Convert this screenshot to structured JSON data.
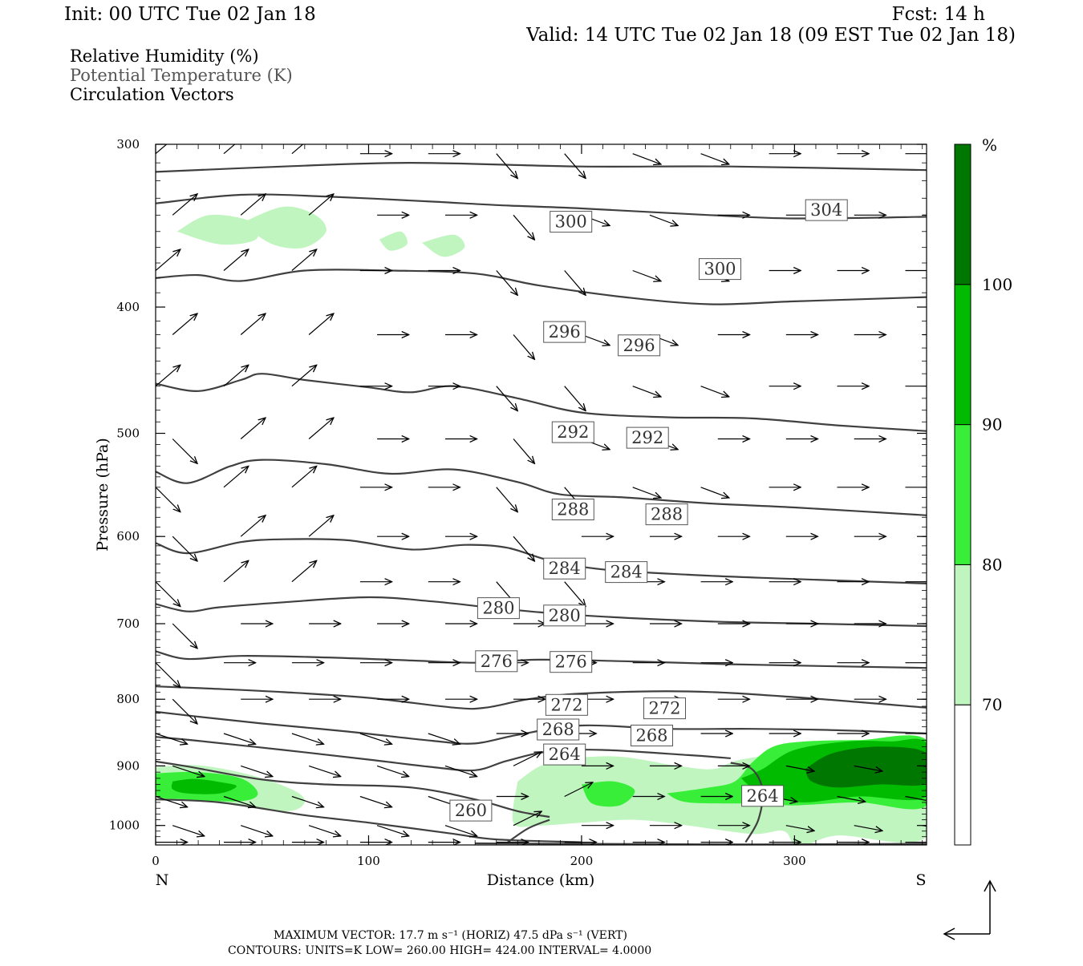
{
  "header": {
    "init": "Init: 00 UTC Tue 02 Jan 18",
    "fcst": "Fcst:   14 h",
    "valid": "Valid: 14 UTC Tue 02 Jan 18 (09 EST Tue 02 Jan 18)"
  },
  "legend": {
    "line1": "Relative Humidity (%)",
    "line2": "Potential Temperature (K)",
    "line3": "Circulation Vectors"
  },
  "footer": {
    "line1": "MAXIMUM VECTOR:  17.7 m s⁻¹ (HORIZ)        47.5 dPa s⁻¹ (VERT)",
    "line2": "CONTOURS:  UNITS=K  LOW=  260.00       HIGH=  424.00       INTERVAL=    4.0000"
  },
  "colors": {
    "rh70": "#c0f5c0",
    "rh80": "#38ee38",
    "rh90": "#00bb00",
    "rh100": "#007700",
    "contour": "#404040",
    "vector": "#000000"
  },
  "chart_data": {
    "type": "cross-section",
    "xlabel": "Distance (km)",
    "ylabel": "Pressure (hPa)",
    "xlim": [
      0,
      362
    ],
    "ylim": [
      1035,
      300
    ],
    "y_scale": "log",
    "x_ticks": [
      0,
      100,
      200,
      300
    ],
    "y_ticks": [
      300,
      400,
      500,
      600,
      700,
      800,
      900,
      1000
    ],
    "x_end_labels": {
      "left": "N",
      "right": "S"
    },
    "colorbar": {
      "unit": "%",
      "levels": [
        70,
        80,
        90,
        100
      ],
      "colors": [
        "#ffffff",
        "#c0f5c0",
        "#38ee38",
        "#00bb00",
        "#007700"
      ]
    },
    "theta_contours": [
      {
        "value": 304,
        "pts": [
          [
            0,
            315
          ],
          [
            60,
            312
          ],
          [
            120,
            310
          ],
          [
            200,
            312
          ],
          [
            270,
            312
          ],
          [
            362,
            314
          ]
        ]
      },
      {
        "value": 304,
        "pts": [
          [
            0,
            333
          ],
          [
            40,
            328
          ],
          [
            80,
            329
          ],
          [
            130,
            332
          ],
          [
            160,
            334
          ],
          [
            200,
            336
          ],
          [
            260,
            340
          ],
          [
            300,
            342
          ],
          [
            362,
            341
          ]
        ]
      },
      {
        "value": 300,
        "pts": [
          [
            0,
            380
          ],
          [
            20,
            378
          ],
          [
            40,
            382
          ],
          [
            70,
            375
          ],
          [
            110,
            375
          ],
          [
            150,
            377
          ],
          [
            180,
            385
          ],
          [
            220,
            393
          ],
          [
            260,
            398
          ],
          [
            300,
            396
          ],
          [
            362,
            393
          ]
        ]
      },
      {
        "value": 296,
        "pts": [
          [
            0,
            458
          ],
          [
            20,
            464
          ],
          [
            40,
            455
          ],
          [
            50,
            450
          ],
          [
            70,
            455
          ],
          [
            100,
            461
          ],
          [
            120,
            465
          ],
          [
            140,
            460
          ],
          [
            170,
            470
          ],
          [
            200,
            482
          ],
          [
            240,
            486
          ],
          [
            280,
            487
          ],
          [
            320,
            493
          ],
          [
            362,
            498
          ]
        ]
      },
      {
        "value": 292,
        "pts": [
          [
            0,
            535
          ],
          [
            15,
            546
          ],
          [
            35,
            530
          ],
          [
            50,
            524
          ],
          [
            80,
            528
          ],
          [
            110,
            537
          ],
          [
            140,
            533
          ],
          [
            170,
            545
          ],
          [
            190,
            557
          ],
          [
            220,
            560
          ],
          [
            260,
            566
          ],
          [
            300,
            570
          ],
          [
            362,
            578
          ]
        ]
      },
      {
        "value": 288,
        "pts": [
          [
            0,
            607
          ],
          [
            15,
            618
          ],
          [
            40,
            606
          ],
          [
            60,
            603
          ],
          [
            90,
            604
          ],
          [
            120,
            614
          ],
          [
            145,
            609
          ],
          [
            165,
            612
          ],
          [
            185,
            626
          ],
          [
            210,
            636
          ],
          [
            250,
            642
          ],
          [
            290,
            646
          ],
          [
            362,
            652
          ]
        ]
      },
      {
        "value": 284,
        "pts": [
          [
            0,
            676
          ],
          [
            15,
            685
          ],
          [
            30,
            680
          ],
          [
            60,
            674
          ],
          [
            100,
            668
          ],
          [
            130,
            673
          ],
          [
            160,
            681
          ],
          [
            190,
            688
          ],
          [
            230,
            694
          ],
          [
            270,
            698
          ],
          [
            310,
            700
          ],
          [
            362,
            703
          ]
        ]
      },
      {
        "value": 280,
        "pts": [
          [
            0,
            735
          ],
          [
            15,
            745
          ],
          [
            40,
            741
          ],
          [
            80,
            743
          ],
          [
            120,
            747
          ],
          [
            150,
            750
          ],
          [
            180,
            746
          ],
          [
            220,
            748
          ],
          [
            270,
            752
          ],
          [
            362,
            757
          ]
        ]
      },
      {
        "value": 276,
        "pts": [
          [
            0,
            782
          ],
          [
            25,
            785
          ],
          [
            60,
            790
          ],
          [
            100,
            798
          ],
          [
            140,
            812
          ],
          [
            155,
            812
          ],
          [
            175,
            800
          ],
          [
            200,
            792
          ],
          [
            250,
            789
          ],
          [
            300,
            797
          ],
          [
            362,
            812
          ]
        ]
      },
      {
        "value": 272,
        "pts": [
          [
            0,
            818
          ],
          [
            20,
            825
          ],
          [
            50,
            835
          ],
          [
            90,
            847
          ],
          [
            130,
            861
          ],
          [
            150,
            865
          ],
          [
            170,
            852
          ],
          [
            200,
            838
          ],
          [
            240,
            843
          ],
          [
            280,
            843
          ],
          [
            320,
            845
          ],
          [
            362,
            850
          ]
        ]
      },
      {
        "value": 268,
        "pts": [
          [
            0,
            855
          ],
          [
            20,
            861
          ],
          [
            60,
            875
          ],
          [
            100,
            890
          ],
          [
            130,
            902
          ],
          [
            150,
            907
          ],
          [
            165,
            892
          ],
          [
            185,
            877
          ],
          [
            210,
            875
          ],
          [
            250,
            883
          ],
          [
            270,
            888
          ]
        ]
      },
      {
        "value": 264,
        "pts": [
          [
            0,
            893
          ],
          [
            15,
            901
          ],
          [
            50,
            922
          ],
          [
            80,
            930
          ],
          [
            120,
            935
          ],
          [
            150,
            955
          ],
          [
            170,
            975
          ],
          [
            185,
            985
          ]
        ]
      },
      {
        "value": 260,
        "pts": [
          [
            0,
            955
          ],
          [
            30,
            960
          ],
          [
            70,
            982
          ],
          [
            100,
            995
          ],
          [
            140,
            1015
          ],
          [
            160,
            1025
          ],
          [
            200,
            1030
          ]
        ]
      },
      {
        "value": 264,
        "pts": [
          [
            165,
            1031
          ],
          [
            175,
            1005
          ],
          [
            185,
            990
          ]
        ]
      },
      {
        "value": 264,
        "pts": [
          [
            270,
            895
          ],
          [
            280,
            905
          ],
          [
            285,
            940
          ],
          [
            283,
            990
          ],
          [
            277,
            1030
          ]
        ]
      },
      {
        "value": 260,
        "pts": [
          [
            150,
            1032
          ],
          [
            200,
            1033
          ],
          [
            280,
            1034
          ],
          [
            362,
            1033
          ]
        ]
      }
    ],
    "contour_labels": [
      {
        "text": "300",
        "x": 195,
        "p": 344
      },
      {
        "text": "300",
        "x": 265,
        "p": 374
      },
      {
        "text": "304",
        "x": 315,
        "p": 337
      },
      {
        "text": "296",
        "x": 192,
        "p": 418
      },
      {
        "text": "296",
        "x": 227,
        "p": 428
      },
      {
        "text": "292",
        "x": 196,
        "p": 499
      },
      {
        "text": "292",
        "x": 231,
        "p": 504
      },
      {
        "text": "288",
        "x": 196,
        "p": 572
      },
      {
        "text": "288",
        "x": 240,
        "p": 577
      },
      {
        "text": "284",
        "x": 192,
        "p": 635
      },
      {
        "text": "284",
        "x": 221,
        "p": 639
      },
      {
        "text": "280",
        "x": 161,
        "p": 681
      },
      {
        "text": "280",
        "x": 192,
        "p": 690
      },
      {
        "text": "276",
        "x": 160,
        "p": 748
      },
      {
        "text": "276",
        "x": 195,
        "p": 749
      },
      {
        "text": "272",
        "x": 193,
        "p": 808
      },
      {
        "text": "272",
        "x": 239,
        "p": 813
      },
      {
        "text": "268",
        "x": 189,
        "p": 844
      },
      {
        "text": "268",
        "x": 233,
        "p": 853
      },
      {
        "text": "264",
        "x": 192,
        "p": 882
      },
      {
        "text": "264",
        "x": 285,
        "p": 949
      },
      {
        "text": "260",
        "x": 148,
        "p": 974
      }
    ],
    "rh_regions": [
      {
        "level": 70,
        "pts": [
          [
            0,
            902
          ],
          [
            20,
            899
          ],
          [
            45,
            915
          ],
          [
            65,
            940
          ],
          [
            70,
            960
          ],
          [
            62,
            975
          ],
          [
            40,
            965
          ],
          [
            15,
            955
          ],
          [
            0,
            950
          ]
        ]
      },
      {
        "level": 80,
        "pts": [
          [
            0,
            912
          ],
          [
            20,
            910
          ],
          [
            40,
            920
          ],
          [
            48,
            945
          ],
          [
            40,
            958
          ],
          [
            15,
            955
          ],
          [
            0,
            948
          ]
        ]
      },
      {
        "level": 90,
        "pts": [
          [
            8,
            925
          ],
          [
            18,
            921
          ],
          [
            30,
            926
          ],
          [
            38,
            933
          ],
          [
            30,
            945
          ],
          [
            15,
            945
          ],
          [
            8,
            938
          ]
        ]
      },
      {
        "level": 70,
        "pts": [
          [
            10,
            350
          ],
          [
            25,
            340
          ],
          [
            45,
            344
          ],
          [
            47,
            355
          ],
          [
            30,
            358
          ]
        ]
      },
      {
        "level": 70,
        "pts": [
          [
            40,
            345
          ],
          [
            60,
            335
          ],
          [
            75,
            340
          ],
          [
            80,
            350
          ],
          [
            70,
            360
          ],
          [
            55,
            358
          ]
        ]
      },
      {
        "level": 70,
        "pts": [
          [
            105,
            355
          ],
          [
            115,
            350
          ],
          [
            118,
            358
          ],
          [
            110,
            362
          ]
        ]
      },
      {
        "level": 70,
        "pts": [
          [
            125,
            357
          ],
          [
            140,
            352
          ],
          [
            145,
            360
          ],
          [
            135,
            366
          ]
        ]
      },
      {
        "level": 70,
        "pts": [
          [
            170,
            925
          ],
          [
            185,
            895
          ],
          [
            215,
            885
          ],
          [
            245,
            900
          ],
          [
            262,
            905
          ],
          [
            275,
            890
          ],
          [
            310,
            875
          ],
          [
            362,
            870
          ],
          [
            362,
            1020
          ],
          [
            320,
            1018
          ],
          [
            302,
            1040
          ],
          [
            295,
            1010
          ],
          [
            280,
            1015
          ],
          [
            250,
            1000
          ],
          [
            225,
            990
          ],
          [
            200,
            995
          ],
          [
            180,
            1000
          ],
          [
            168,
            995
          ]
        ]
      },
      {
        "level": 80,
        "pts": [
          [
            200,
            930
          ],
          [
            215,
            925
          ],
          [
            225,
            940
          ],
          [
            218,
            965
          ],
          [
            205,
            962
          ]
        ]
      },
      {
        "level": 80,
        "pts": [
          [
            240,
            945
          ],
          [
            260,
            935
          ],
          [
            272,
            925
          ],
          [
            280,
            895
          ],
          [
            290,
            870
          ],
          [
            305,
            862
          ],
          [
            330,
            860
          ],
          [
            362,
            860
          ],
          [
            362,
            965
          ],
          [
            330,
            960
          ],
          [
            300,
            965
          ],
          [
            280,
            962
          ],
          [
            250,
            960
          ]
        ]
      },
      {
        "level": 90,
        "pts": [
          [
            275,
            920
          ],
          [
            285,
            905
          ],
          [
            300,
            875
          ],
          [
            325,
            862
          ],
          [
            345,
            862
          ],
          [
            362,
            865
          ],
          [
            362,
            950
          ],
          [
            330,
            950
          ],
          [
            305,
            960
          ],
          [
            290,
            950
          ],
          [
            280,
            935
          ]
        ]
      },
      {
        "level": 100,
        "pts": [
          [
            305,
            905
          ],
          [
            318,
            880
          ],
          [
            340,
            870
          ],
          [
            362,
            880
          ],
          [
            362,
            928
          ],
          [
            340,
            930
          ],
          [
            320,
            935
          ],
          [
            308,
            925
          ]
        ]
      }
    ],
    "vectors": [
      [
        0,
        1.5,
        3.5,
        -1.5
      ],
      [
        5,
        -2.5,
        7.5,
        -2.5
      ],
      [
        6,
        1.5,
        5,
        -2.5
      ],
      [
        6,
        2.5,
        -3.5,
        -1.5
      ],
      [
        14,
        1,
        3,
        -1
      ],
      [
        14,
        2,
        3,
        -2
      ],
      [
        19,
        -1,
        2,
        -1
      ],
      [
        19,
        -2,
        -1,
        -2
      ]
    ]
  }
}
